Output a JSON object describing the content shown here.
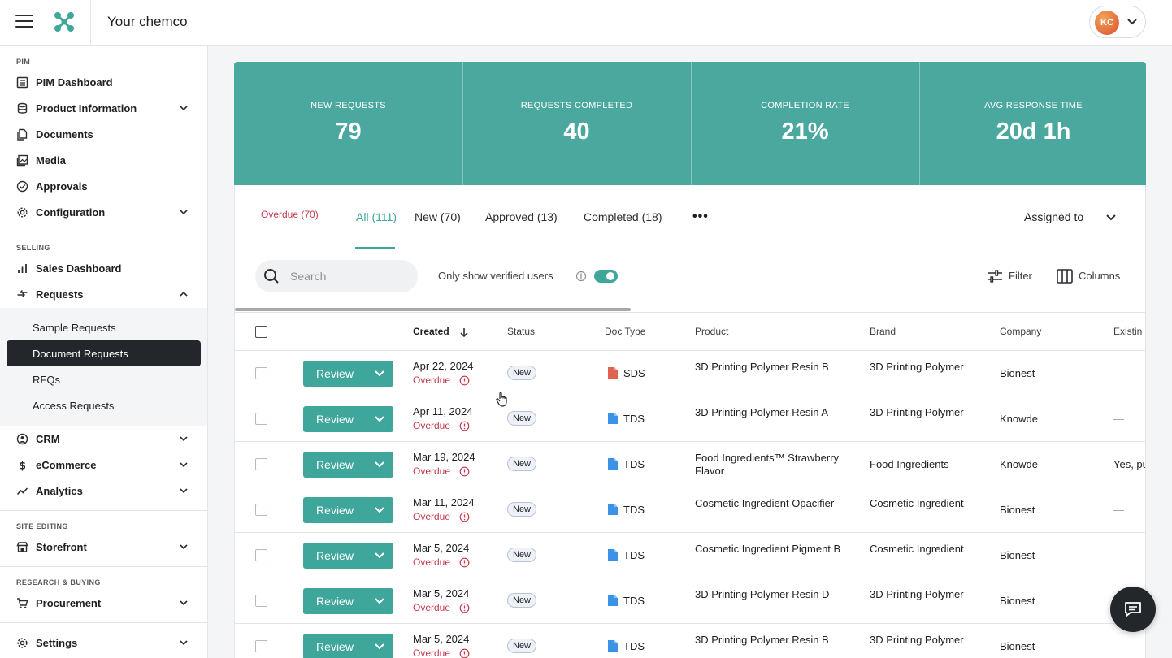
{
  "header": {
    "company": "Your chemco",
    "user_initials": "KC"
  },
  "sidebar": {
    "sections": {
      "pim": "PIM",
      "selling": "SELLING",
      "site_editing": "SITE EDITING",
      "research": "RESEARCH & BUYING"
    },
    "items": {
      "pim_dashboard": "PIM Dashboard",
      "product_information": "Product Information",
      "documents": "Documents",
      "media": "Media",
      "approvals": "Approvals",
      "configuration": "Configuration",
      "sales_dashboard": "Sales Dashboard",
      "requests": "Requests",
      "crm": "CRM",
      "ecommerce": "eCommerce",
      "analytics": "Analytics",
      "storefront": "Storefront",
      "procurement": "Procurement",
      "settings": "Settings"
    },
    "sub_items": [
      "Sample Requests",
      "Document Requests",
      "RFQs",
      "Access Requests"
    ]
  },
  "stats": [
    {
      "caption": "NEW REQUESTS",
      "value": "79"
    },
    {
      "caption": "REQUESTS COMPLETED",
      "value": "40"
    },
    {
      "caption": "COMPLETION RATE",
      "value": "21%"
    },
    {
      "caption": "AVG RESPONSE TIME",
      "value": "20d 1h"
    }
  ],
  "tabs": [
    "Overdue (70)",
    "All (111)",
    "New (70)",
    "Approved (13)",
    "Completed (18)"
  ],
  "more_label": "•••",
  "assigned_label": "Assigned to",
  "toolbar": {
    "search_placeholder": "Search",
    "verified_label": "Only show verified users",
    "filter_label": "Filter",
    "columns_label": "Columns"
  },
  "table": {
    "headers": [
      "Created",
      "Status",
      "Doc Type",
      "Product",
      "Brand",
      "Company",
      "Existin"
    ],
    "review_label": "Review",
    "overdue_label": "Overdue",
    "rows": [
      {
        "date": "Apr 22, 2024",
        "status": "New",
        "doc": "SDS",
        "doc_color": "#e0634f",
        "product": "3D Printing Polymer Resin B",
        "brand": "3D Printing Polymer",
        "company": "Bionest",
        "existing": "—"
      },
      {
        "date": "Apr 11, 2024",
        "status": "New",
        "doc": "TDS",
        "doc_color": "#3b93e8",
        "product": "3D Printing Polymer Resin A",
        "brand": "3D Printing Polymer",
        "company": "Knowde",
        "existing": "—"
      },
      {
        "date": "Mar 19, 2024",
        "status": "New",
        "doc": "TDS",
        "doc_color": "#3b93e8",
        "product": "Food Ingredients™ Strawberry Flavor",
        "brand": "Food Ingredients",
        "company": "Knowde",
        "existing": "Yes, pu"
      },
      {
        "date": "Mar 11, 2024",
        "status": "New",
        "doc": "TDS",
        "doc_color": "#3b93e8",
        "product": "Cosmetic Ingredient Opacifier",
        "brand": "Cosmetic Ingredient",
        "company": "Bionest",
        "existing": "—"
      },
      {
        "date": "Mar 5, 2024",
        "status": "New",
        "doc": "TDS",
        "doc_color": "#3b93e8",
        "product": "Cosmetic Ingredient Pigment B",
        "brand": "Cosmetic Ingredient",
        "company": "Bionest",
        "existing": "—"
      },
      {
        "date": "Mar 5, 2024",
        "status": "New",
        "doc": "TDS",
        "doc_color": "#3b93e8",
        "product": "3D Printing Polymer Resin D",
        "brand": "3D Printing Polymer",
        "company": "Bionest",
        "existing": "—"
      },
      {
        "date": "Mar 5, 2024",
        "status": "New",
        "doc": "TDS",
        "doc_color": "#3b93e8",
        "product": "3D Printing Polymer Resin B",
        "brand": "3D Printing Polymer",
        "company": "Bionest",
        "existing": "—"
      }
    ]
  },
  "colors": {
    "teal": "#4ba89f",
    "accent": "#3ea69b",
    "overdue": "#c8394e",
    "dark": "#23262b"
  }
}
